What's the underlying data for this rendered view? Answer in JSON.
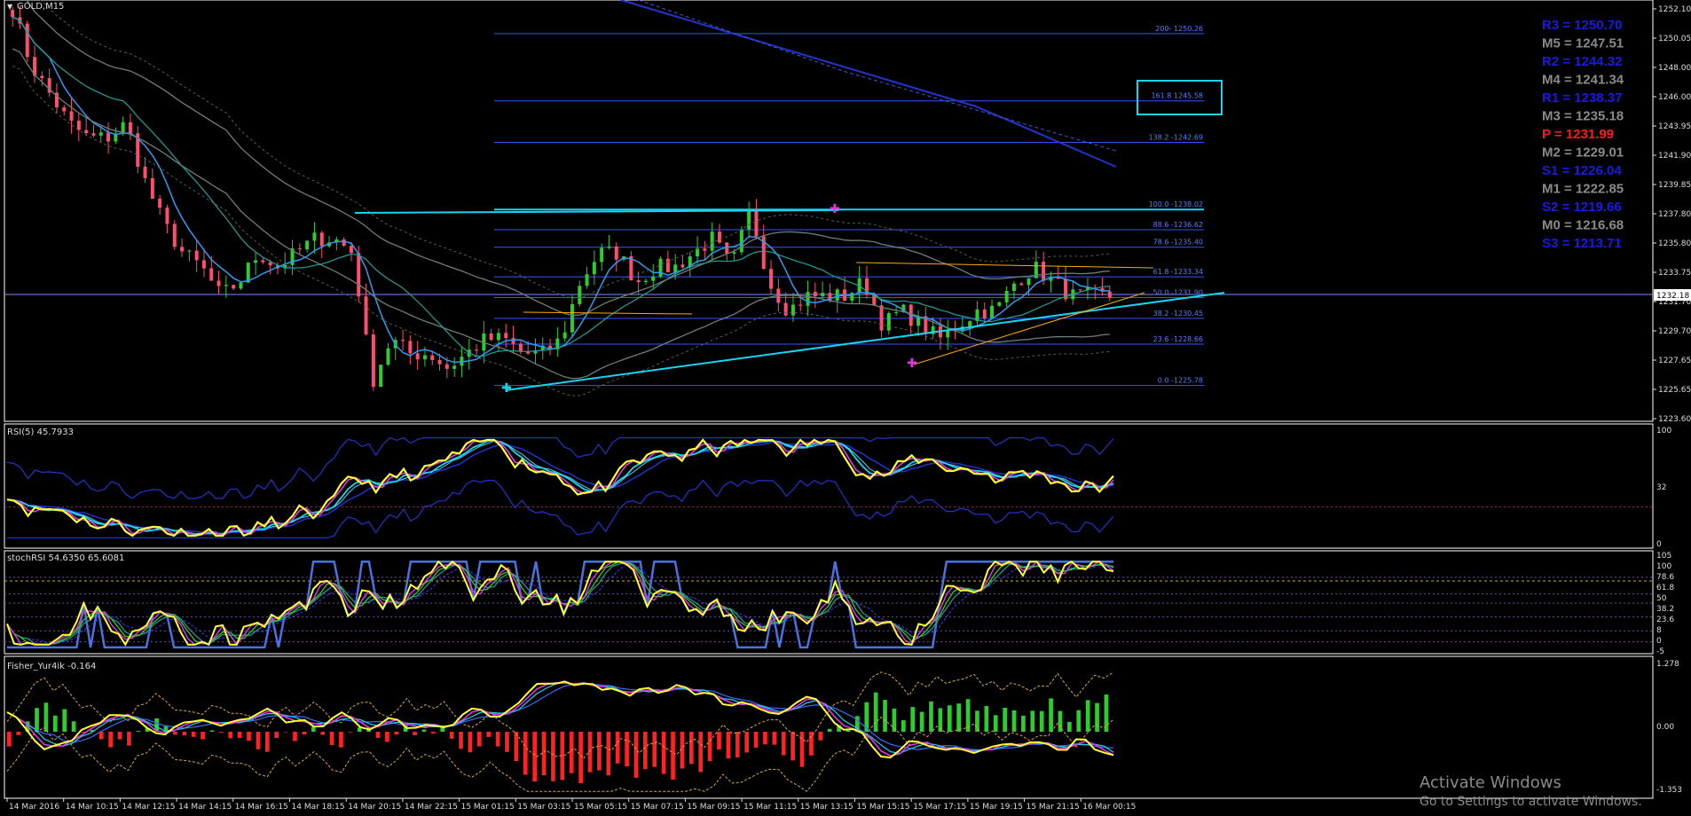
{
  "window": {
    "title": "GOLD,M15",
    "menu_icon": "triangle-down-icon"
  },
  "main_axis": {
    "labels": [
      "1252.10",
      "1250.05",
      "1248.00",
      "1246.00",
      "1243.95",
      "1241.90",
      "1239.85",
      "1237.80",
      "1235.80",
      "1233.75",
      "1231.70",
      "1229.70",
      "1227.65",
      "1225.65",
      "1223.60"
    ],
    "current_price_label": "1232.18"
  },
  "pivots": [
    {
      "label": "R3 = 1250.70",
      "color": "#1a1ae6"
    },
    {
      "label": "M5 = 1247.51",
      "color": "#8a8a8a"
    },
    {
      "label": "R2 = 1244.32",
      "color": "#1a1ae6"
    },
    {
      "label": "M4 = 1241.34",
      "color": "#8a8a8a"
    },
    {
      "label": "R1 = 1238.37",
      "color": "#1a1ae6"
    },
    {
      "label": "M3 = 1235.18",
      "color": "#8a8a8a"
    },
    {
      "label": "P   = 1231.99",
      "color": "#ff1a1a"
    },
    {
      "label": "M2 = 1229.01",
      "color": "#8a8a8a"
    },
    {
      "label": "S1 = 1226.04",
      "color": "#1a1ae6"
    },
    {
      "label": "M1 = 1222.85",
      "color": "#8a8a8a"
    },
    {
      "label": "S2 = 1219.66",
      "color": "#1a1ae6"
    },
    {
      "label": "M0 = 1216.68",
      "color": "#8a8a8a"
    },
    {
      "label": "S3 = 1213.71",
      "color": "#1a1ae6"
    }
  ],
  "fib_levels": [
    {
      "label": "200- 1250.26",
      "price": 1250.26
    },
    {
      "label": "161.8 1245.58",
      "price": 1245.58
    },
    {
      "label": "138.2 -1242.69",
      "price": 1242.69
    },
    {
      "label": "100.0 -1238.02",
      "price": 1238.02
    },
    {
      "label": "88.6 -1236.62",
      "price": 1236.62
    },
    {
      "label": "78.6 -1235.40",
      "price": 1235.4
    },
    {
      "label": "61.8 -1233.34",
      "price": 1233.34
    },
    {
      "label": "50.0 -1231.90",
      "price": 1231.9
    },
    {
      "label": "38.2 -1230.45",
      "price": 1230.45
    },
    {
      "label": "23.6 -1228.66",
      "price": 1228.66
    },
    {
      "label": "0.0 -1225.78",
      "price": 1225.78
    }
  ],
  "rsi_panel": {
    "title": "RSI(5) 45.7933",
    "axis": [
      "100",
      "32",
      "0"
    ]
  },
  "stoch_panel": {
    "title": "stochRSI 54.6350 65.6081",
    "axis": [
      "105",
      "100",
      "78.6",
      "61.8",
      "50",
      "38.2",
      "23.6",
      "8",
      "0",
      "-5"
    ]
  },
  "fisher_panel": {
    "title": "Fisher_Yur4ik -0.164",
    "axis": [
      "1.278",
      "0.00",
      "-1.353"
    ]
  },
  "time_axis": [
    "14 Mar 2016",
    "14 Mar 10:15",
    "14 Mar 12:15",
    "14 Mar 14:15",
    "14 Mar 16:15",
    "14 Mar 18:15",
    "14 Mar 20:15",
    "14 Mar 22:15",
    "15 Mar 01:15",
    "15 Mar 03:15",
    "15 Mar 05:15",
    "15 Mar 07:15",
    "15 Mar 09:15",
    "15 Mar 11:15",
    "15 Mar 13:15",
    "15 Mar 15:15",
    "15 Mar 17:15",
    "15 Mar 19:15",
    "15 Mar 21:15",
    "16 Mar 00:15"
  ],
  "watermark": {
    "line1": "Activate Windows",
    "line2": "Go to Settings to activate Windows."
  },
  "colors": {
    "bull": "#2ecc2e",
    "bear": "#ff4d6d",
    "fib": "#3355ff",
    "cyan": "#19d3f0",
    "yellow": "#ffff33",
    "magenta": "#e633e6"
  },
  "chart_data": [
    {
      "type": "candlestick",
      "title": "GOLD,M15",
      "ylim": [
        1223.6,
        1252.1
      ],
      "ohlc_close_path": [
        1252,
        1248,
        1246,
        1244,
        1243,
        1243,
        1244,
        1240,
        1237,
        1235,
        1234,
        1232,
        1233,
        1235,
        1234,
        1235,
        1236,
        1236,
        1235,
        1226,
        1229,
        1228,
        1228,
        1227,
        1228,
        1229,
        1229,
        1228,
        1228,
        1229,
        1233,
        1235,
        1235,
        1233,
        1234,
        1234,
        1235,
        1236,
        1234,
        1238,
        1233,
        1231,
        1232,
        1232,
        1232,
        1233,
        1230,
        1231,
        1230,
        1229,
        1230,
        1231,
        1231,
        1233,
        1234,
        1233,
        1232,
        1232,
        1232
      ]
    },
    {
      "type": "line",
      "title": "RSI(5) 45.7933",
      "ylim": [
        0,
        100
      ]
    },
    {
      "type": "line",
      "title": "stochRSI 54.6350 65.6081",
      "ylim": [
        -5,
        105
      ]
    },
    {
      "type": "bar",
      "title": "Fisher_Yur4ik -0.164",
      "ylim": [
        -1.353,
        1.278
      ]
    }
  ]
}
